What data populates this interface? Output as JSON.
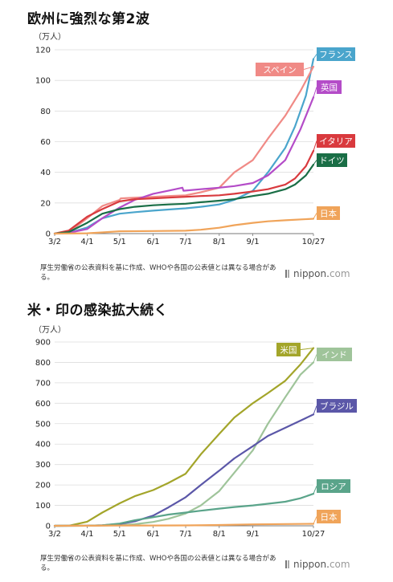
{
  "chart_data": [
    {
      "type": "line",
      "title": "欧州に強烈な第2波",
      "unit": "（万人）",
      "x_ticks": [
        "3/2",
        "4/1",
        "5/1",
        "6/1",
        "7/1",
        "8/1",
        "9/1",
        "10/27"
      ],
      "ylim": [
        0,
        120
      ],
      "y_ticks": [
        0,
        20,
        40,
        60,
        80,
        100,
        120
      ],
      "grid": true,
      "series": [
        {
          "name": "フランス",
          "color": "#4aa5cc",
          "x": [
            "3/2",
            "3/15",
            "4/1",
            "4/15",
            "5/1",
            "5/15",
            "6/1",
            "6/15",
            "7/1",
            "7/15",
            "8/1",
            "8/15",
            "9/1",
            "9/15",
            "10/1",
            "10/10",
            "10/20",
            "10/27"
          ],
          "values": [
            0,
            0.5,
            4,
            10,
            13,
            14,
            15,
            15.7,
            16.5,
            17.5,
            19,
            22,
            28,
            40,
            56,
            70,
            90,
            114
          ]
        },
        {
          "name": "スペイン",
          "color": "#f08a86",
          "x": [
            "3/2",
            "3/15",
            "4/1",
            "4/15",
            "5/1",
            "5/2",
            "5/15",
            "6/1",
            "6/15",
            "7/1",
            "7/15",
            "8/1",
            "8/15",
            "9/1",
            "9/15",
            "10/1",
            "10/15",
            "10/27"
          ],
          "values": [
            0,
            1,
            10,
            18,
            22,
            23,
            23.5,
            24,
            24.5,
            25,
            27,
            30,
            40,
            48,
            62,
            77,
            93,
            109
          ]
        },
        {
          "name": "英国",
          "color": "#b44cc8",
          "x": [
            "3/2",
            "3/15",
            "4/1",
            "4/15",
            "5/1",
            "5/15",
            "6/1",
            "6/15",
            "6/28",
            "6/29",
            "7/15",
            "8/1",
            "8/15",
            "9/1",
            "9/15",
            "10/1",
            "10/15",
            "10/27"
          ],
          "values": [
            0,
            0.5,
            3,
            10,
            17,
            22,
            26,
            28,
            30,
            28,
            29,
            30,
            31,
            33,
            38,
            48,
            68,
            89
          ]
        },
        {
          "name": "イタリア",
          "color": "#d93a3e",
          "x": [
            "3/2",
            "3/15",
            "4/1",
            "4/15",
            "5/1",
            "5/15",
            "6/1",
            "6/15",
            "7/1",
            "7/15",
            "8/1",
            "8/15",
            "9/1",
            "9/15",
            "10/1",
            "10/10",
            "10/20",
            "10/27"
          ],
          "values": [
            0,
            2,
            11,
            16,
            21,
            22.5,
            23,
            23.5,
            24,
            24.5,
            25,
            26,
            27.5,
            29,
            32,
            36,
            44,
            54
          ]
        },
        {
          "name": "ドイツ",
          "color": "#1a6e46",
          "x": [
            "3/2",
            "3/15",
            "4/1",
            "4/15",
            "5/1",
            "5/15",
            "6/1",
            "6/15",
            "7/1",
            "7/15",
            "8/1",
            "8/15",
            "9/1",
            "9/15",
            "10/1",
            "10/10",
            "10/20",
            "10/27"
          ],
          "values": [
            0,
            1,
            7,
            13,
            16,
            17.5,
            18.5,
            19,
            19.5,
            20.5,
            21.5,
            22.5,
            24.5,
            26,
            29,
            32,
            38,
            45
          ]
        },
        {
          "name": "日本",
          "color": "#f0a45a",
          "x": [
            "3/2",
            "4/1",
            "4/15",
            "5/1",
            "6/1",
            "7/1",
            "7/15",
            "8/1",
            "8/15",
            "9/1",
            "9/15",
            "10/1",
            "10/27"
          ],
          "values": [
            0,
            0.2,
            0.8,
            1.5,
            1.7,
            1.9,
            2.5,
            3.8,
            5.5,
            7,
            8,
            8.7,
            9.7
          ]
        }
      ]
    },
    {
      "type": "line",
      "title": "米・印の感染拡大続く",
      "unit": "（万人）",
      "x_ticks": [
        "3/2",
        "4/1",
        "5/1",
        "6/1",
        "7/1",
        "8/1",
        "9/1",
        "10/27"
      ],
      "ylim": [
        0,
        900
      ],
      "y_ticks": [
        0,
        100,
        200,
        300,
        400,
        500,
        600,
        700,
        800,
        900
      ],
      "grid": true,
      "series": [
        {
          "name": "米国",
          "color": "#a3a52a",
          "x": [
            "3/2",
            "3/15",
            "4/1",
            "4/15",
            "5/1",
            "5/15",
            "6/1",
            "6/15",
            "7/1",
            "7/15",
            "8/1",
            "8/15",
            "9/1",
            "9/15",
            "10/1",
            "10/15",
            "10/27"
          ],
          "values": [
            0,
            0.5,
            20,
            65,
            110,
            145,
            175,
            210,
            255,
            350,
            450,
            530,
            600,
            650,
            710,
            790,
            870
          ]
        },
        {
          "name": "インド",
          "color": "#9fc49a",
          "x": [
            "3/2",
            "4/1",
            "4/15",
            "5/1",
            "5/15",
            "6/1",
            "6/15",
            "7/1",
            "7/15",
            "8/1",
            "8/15",
            "9/1",
            "9/15",
            "10/1",
            "10/15",
            "10/27"
          ],
          "values": [
            0,
            0.2,
            1,
            3.5,
            8,
            19,
            34,
            60,
            100,
            170,
            260,
            370,
            500,
            630,
            740,
            800
          ]
        },
        {
          "name": "ブラジル",
          "color": "#5b57a8",
          "x": [
            "3/2",
            "4/1",
            "4/15",
            "5/1",
            "5/15",
            "6/1",
            "6/15",
            "7/1",
            "7/15",
            "8/1",
            "8/15",
            "9/1",
            "9/15",
            "10/1",
            "10/15",
            "10/27"
          ],
          "values": [
            0,
            0.5,
            2.5,
            9,
            22,
            50,
            90,
            140,
            200,
            270,
            330,
            390,
            440,
            480,
            515,
            545
          ]
        },
        {
          "name": "ロシア",
          "color": "#5aa48a",
          "x": [
            "3/2",
            "4/1",
            "4/15",
            "5/1",
            "5/15",
            "6/1",
            "6/15",
            "7/1",
            "7/15",
            "8/1",
            "8/15",
            "9/1",
            "9/15",
            "10/1",
            "10/15",
            "10/27"
          ],
          "values": [
            0,
            0.3,
            2.5,
            11,
            27,
            42,
            55,
            65,
            74,
            84,
            92,
            100,
            108,
            118,
            135,
            157
          ]
        },
        {
          "name": "日本",
          "color": "#f0a45a",
          "x": [
            "3/2",
            "4/1",
            "5/1",
            "6/1",
            "7/1",
            "8/1",
            "9/1",
            "10/1",
            "10/27"
          ],
          "values": [
            0,
            0.2,
            1.5,
            1.7,
            1.9,
            3.8,
            7,
            8.7,
            9.7
          ]
        }
      ]
    }
  ],
  "notes": [
    "厚生労働省の公表資料を基に作成、WHOや各国の公表値とは異なる場合がある。",
    "厚生労働省の公表資料を基に作成、WHOや各国の公表値とは異なる場合がある。"
  ],
  "brand": {
    "name": "nippon",
    "dot": ".",
    "suffix": "com"
  }
}
